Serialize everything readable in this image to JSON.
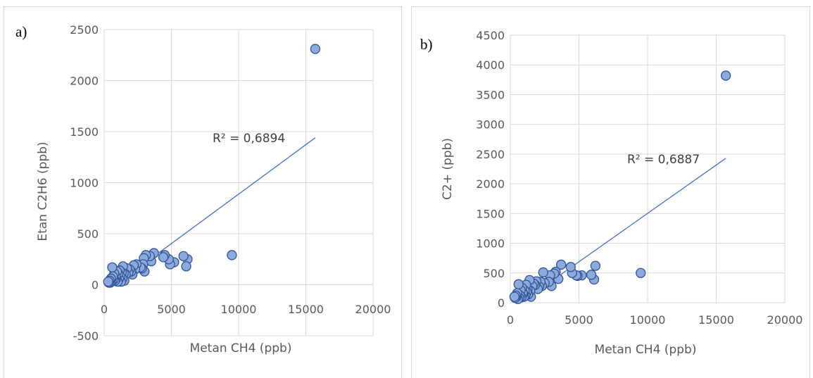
{
  "chart_data": [
    {
      "type": "scatter",
      "panel_label": "a)",
      "title": "",
      "xlabel": "Metan CH4 (ppb)",
      "ylabel": "Etan C2H6 (ppb)",
      "xlim": [
        0,
        20000
      ],
      "ylim": [
        -500,
        2500
      ],
      "xticks": [
        0,
        5000,
        10000,
        15000,
        20000
      ],
      "yticks": [
        -500,
        0,
        500,
        1000,
        1500,
        2000,
        2500
      ],
      "grid": true,
      "marker_color": "#8EA9DB",
      "marker_edge": "#2F5597",
      "trendline": {
        "type": "linear",
        "color": "#4472C4",
        "x": [
          2800,
          15700
        ],
        "y": [
          190,
          1440
        ],
        "label": "R² = 0,6894"
      },
      "series": [
        {
          "x": [
            15700,
            9500,
            6200,
            6100,
            5900,
            5200,
            4900,
            4800,
            4500,
            4400,
            3700,
            3500,
            3400,
            3100,
            3000,
            2950,
            2900,
            2800,
            2700,
            2400,
            2300,
            2200,
            2100,
            2000,
            1900,
            1800,
            1700,
            1600,
            1500,
            1450,
            1400,
            1350,
            1300,
            1250,
            1200,
            1150,
            1100,
            1050,
            1000,
            950,
            900,
            850,
            800,
            750,
            700,
            650,
            600,
            550,
            500,
            450,
            400,
            350,
            300
          ],
          "y": [
            2310,
            290,
            250,
            180,
            280,
            220,
            200,
            250,
            290,
            270,
            310,
            230,
            280,
            290,
            130,
            260,
            200,
            160,
            170,
            200,
            150,
            190,
            100,
            130,
            150,
            120,
            160,
            100,
            40,
            110,
            180,
            60,
            120,
            30,
            80,
            140,
            60,
            110,
            30,
            130,
            60,
            80,
            40,
            110,
            50,
            80,
            170,
            30,
            60,
            20,
            40,
            20,
            30
          ]
        }
      ]
    },
    {
      "type": "scatter",
      "panel_label": "b)",
      "title": "",
      "xlabel": "Metan CH4 (ppb)",
      "ylabel": "C2+ (ppb)",
      "xlim": [
        0,
        20000
      ],
      "ylim": [
        0,
        4500
      ],
      "xticks": [
        0,
        5000,
        10000,
        15000,
        20000
      ],
      "yticks": [
        0,
        500,
        1000,
        1500,
        2000,
        2500,
        3000,
        3500,
        4000,
        4500
      ],
      "grid": true,
      "marker_color": "#8EA9DB",
      "marker_edge": "#2F5597",
      "trendline": {
        "type": "linear",
        "color": "#4472C4",
        "x": [
          2800,
          15700
        ],
        "y": [
          330,
          2430
        ],
        "label": "R² = 0,6887"
      },
      "series": [
        {
          "x": [
            15700,
            9500,
            6200,
            6100,
            5900,
            5200,
            4900,
            4800,
            4500,
            4400,
            3700,
            3500,
            3300,
            3200,
            3000,
            2900,
            2800,
            2500,
            2400,
            2300,
            2200,
            2100,
            2000,
            1900,
            1800,
            1700,
            1600,
            1500,
            1450,
            1400,
            1300,
            1250,
            1200,
            1150,
            1100,
            1050,
            1000,
            950,
            900,
            850,
            800,
            750,
            700,
            650,
            600,
            550,
            500,
            450,
            400,
            350,
            300
          ],
          "y": [
            3820,
            500,
            620,
            390,
            470,
            460,
            450,
            460,
            500,
            600,
            640,
            400,
            520,
            490,
            280,
            460,
            350,
            330,
            510,
            280,
            350,
            270,
            230,
            360,
            300,
            320,
            280,
            100,
            200,
            380,
            140,
            230,
            180,
            300,
            120,
            200,
            100,
            150,
            170,
            250,
            90,
            210,
            120,
            80,
            310,
            60,
            160,
            100,
            120,
            80,
            100
          ]
        }
      ]
    }
  ]
}
